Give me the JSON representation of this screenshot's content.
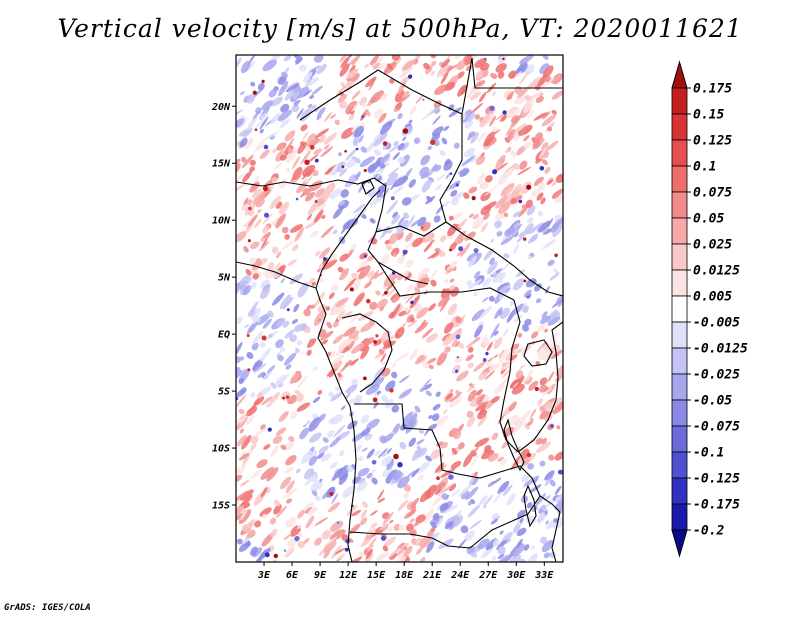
{
  "title": "Vertical velocity [m/s] at 500hPa, VT: 2020011621",
  "footer": "GrADS: IGES/COLA",
  "map": {
    "lon_range": [
      0,
      35
    ],
    "lat_range": [
      -20,
      24.5
    ],
    "lat_ticks": [
      {
        "value": 20,
        "label": "20N"
      },
      {
        "value": 15,
        "label": "15N"
      },
      {
        "value": 10,
        "label": "10N"
      },
      {
        "value": 5,
        "label": "5N"
      },
      {
        "value": 0,
        "label": "EQ"
      },
      {
        "value": -5,
        "label": "5S"
      },
      {
        "value": -10,
        "label": "10S"
      },
      {
        "value": -15,
        "label": "15S"
      }
    ],
    "lon_ticks": [
      {
        "value": 3,
        "label": "3E"
      },
      {
        "value": 6,
        "label": "6E"
      },
      {
        "value": 9,
        "label": "9E"
      },
      {
        "value": 12,
        "label": "12E"
      },
      {
        "value": 15,
        "label": "15E"
      },
      {
        "value": 18,
        "label": "18E"
      },
      {
        "value": 21,
        "label": "21E"
      },
      {
        "value": 24,
        "label": "24E"
      },
      {
        "value": 27,
        "label": "27E"
      },
      {
        "value": 30,
        "label": "30E"
      },
      {
        "value": 33,
        "label": "33E"
      }
    ]
  },
  "colorbar": {
    "levels": [
      "0.175",
      "0.15",
      "0.125",
      "0.1",
      "0.075",
      "0.05",
      "0.025",
      "0.0125",
      "0.005",
      "-0.005",
      "-0.0125",
      "-0.025",
      "-0.05",
      "-0.075",
      "-0.1",
      "-0.125",
      "-0.175",
      "-0.2"
    ],
    "colors": [
      "#a01010",
      "#c42020",
      "#d83434",
      "#e65050",
      "#ee6e6e",
      "#f28c8c",
      "#f6aaaa",
      "#f9c8c8",
      "#fde4e4",
      "#ffffff",
      "#e0e0fa",
      "#c4c4f4",
      "#a6a6ee",
      "#8a8ae6",
      "#6c6cdc",
      "#5050d2",
      "#3232c2",
      "#1a1aaa",
      "#0a0a8c"
    ]
  }
}
